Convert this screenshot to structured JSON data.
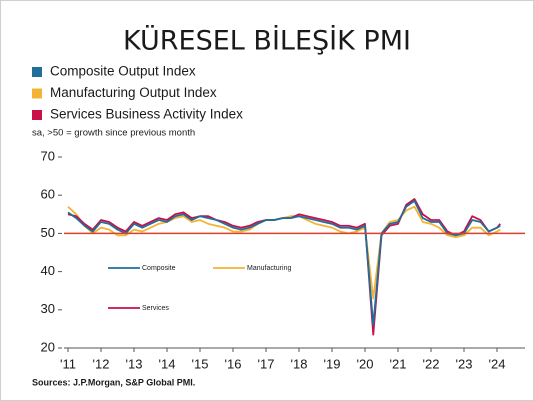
{
  "chart_data": {
    "type": "line",
    "title": "KÜRESEL BİLEŞİK PMI",
    "subtitle": "sa, >50 = growth since previous month",
    "source": "Sources: J.P.Morgan, S&P Global PMI.",
    "inline_legend": [
      "Composite",
      "Manufacturing",
      "Services"
    ],
    "reference_line": {
      "value": 50,
      "color": "#d9402b"
    },
    "xlim": [
      2011,
      2024
    ],
    "ylim": [
      20,
      70
    ],
    "yticks": [
      20,
      30,
      40,
      50,
      60,
      70
    ],
    "xticks": [
      {
        "value": 2011,
        "label": "'11"
      },
      {
        "value": 2012,
        "label": "'12"
      },
      {
        "value": 2013,
        "label": "'13"
      },
      {
        "value": 2014,
        "label": "'14"
      },
      {
        "value": 2015,
        "label": "'15"
      },
      {
        "value": 2016,
        "label": "'16"
      },
      {
        "value": 2017,
        "label": "'17"
      },
      {
        "value": 2018,
        "label": "'18"
      },
      {
        "value": 2019,
        "label": "'19"
      },
      {
        "value": 2020,
        "label": "'20"
      },
      {
        "value": 2021,
        "label": "'21"
      },
      {
        "value": 2022,
        "label": "'22"
      },
      {
        "value": 2023,
        "label": "'23"
      },
      {
        "value": 2024,
        "label": "'24"
      }
    ],
    "x": [
      2011,
      2011.25,
      2011.5,
      2011.75,
      2012,
      2012.25,
      2012.5,
      2012.75,
      2013,
      2013.25,
      2013.5,
      2013.75,
      2014,
      2014.25,
      2014.5,
      2014.75,
      2015,
      2015.25,
      2015.5,
      2015.75,
      2016,
      2016.25,
      2016.5,
      2016.75,
      2017,
      2017.25,
      2017.5,
      2017.75,
      2018,
      2018.25,
      2018.5,
      2018.75,
      2019,
      2019.25,
      2019.5,
      2019.75,
      2020,
      2020.25,
      2020.5,
      2020.75,
      2021,
      2021.25,
      2021.5,
      2021.75,
      2022,
      2022.25,
      2022.5,
      2022.75,
      2023,
      2023.25,
      2023.5,
      2023.75,
      2024,
      2024.1
    ],
    "series": [
      {
        "name": "Manufacturing Output Index",
        "color": "#f5b335",
        "values": [
          57,
          55,
          52,
          50,
          51.5,
          51,
          49.5,
          49.5,
          51,
          50.5,
          51.5,
          52.5,
          53,
          54,
          54.5,
          53,
          53.5,
          52.5,
          52,
          51.5,
          50.5,
          50.5,
          51,
          52.5,
          53.5,
          53.5,
          54,
          54.5,
          54.5,
          53.5,
          52.5,
          52,
          51.5,
          50.5,
          50,
          50.5,
          51.5,
          33,
          50,
          53,
          53.5,
          56,
          57,
          53,
          52.5,
          51.5,
          49.5,
          49,
          49.5,
          51.5,
          51.5,
          49.5,
          50.5,
          51
        ]
      },
      {
        "name": "Services Business Activity Index",
        "color": "#c8104a",
        "values": [
          55,
          54.5,
          52.5,
          51,
          53.5,
          53,
          51.5,
          50.5,
          53,
          52,
          53,
          54,
          53.5,
          55,
          55.5,
          54,
          54.5,
          54.5,
          53.5,
          53,
          52,
          51.5,
          52,
          53,
          53.5,
          53.5,
          54,
          54,
          55,
          54.5,
          54,
          53.5,
          53,
          52,
          52,
          51.5,
          52.5,
          23.5,
          49.5,
          52,
          52.5,
          57.5,
          59,
          55,
          53.5,
          53.5,
          50.5,
          49.5,
          50.5,
          54.5,
          53.5,
          50.5,
          51.5,
          52.5
        ]
      },
      {
        "name": "Composite Output Index",
        "color": "#1f6f9a",
        "values": [
          55.5,
          54,
          52,
          50.5,
          53,
          52.5,
          51,
          50,
          52.5,
          51.5,
          52.5,
          53.5,
          53,
          54.5,
          55,
          53.5,
          54.5,
          54,
          53.5,
          52.5,
          51.5,
          51,
          51.5,
          52.5,
          53.5,
          53.5,
          54,
          54,
          54.5,
          54,
          53.5,
          53,
          52.5,
          51.5,
          51.5,
          51,
          52,
          26,
          50,
          52.5,
          53,
          57,
          58.5,
          54,
          53,
          53,
          50,
          49.5,
          50,
          53.5,
          53,
          50.5,
          51.5,
          52
        ]
      }
    ]
  }
}
